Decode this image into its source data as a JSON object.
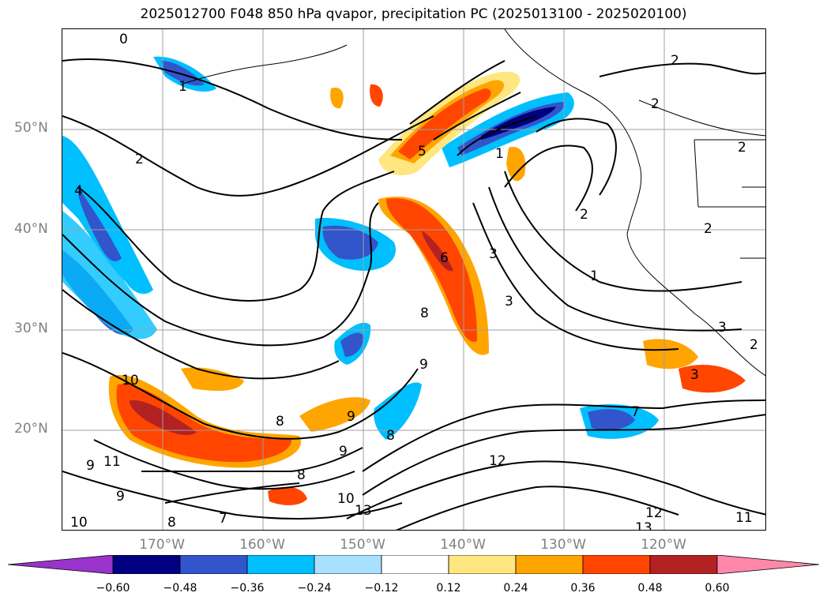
{
  "title": "2025012700 F048 850 hPa qvapor, precipitation PC (2025013100 - 2025020100)",
  "lat_labels": [
    "50°N",
    "40°N",
    "30°N",
    "20°N"
  ],
  "lon_labels": [
    "170°W",
    "160°W",
    "150°W",
    "140°W",
    "130°W",
    "120°W"
  ],
  "colorbar": {
    "ticks": [
      "−0.60",
      "−0.48",
      "−0.36",
      "−0.24",
      "−0.12",
      "0.12",
      "0.24",
      "0.36",
      "0.48",
      "0.60"
    ],
    "colors": [
      "#9933cc",
      "#000080",
      "#3355cc",
      "#00bfff",
      "#a8e0ff",
      "#ffffff",
      "#ffe680",
      "#ffa500",
      "#ff4500",
      "#b22222",
      "#ff88aa"
    ]
  },
  "contour_labels": [
    "0",
    "1",
    "2",
    "2",
    "4",
    "5",
    "6",
    "1",
    "2",
    "2",
    "2",
    "2",
    "3",
    "1",
    "3",
    "8",
    "9",
    "10",
    "11",
    "9",
    "8",
    "7",
    "9",
    "8",
    "8",
    "8",
    "10",
    "9",
    "13",
    "12",
    "12",
    "13",
    "11",
    "7",
    "3",
    "3",
    "2",
    "9",
    "10"
  ]
}
